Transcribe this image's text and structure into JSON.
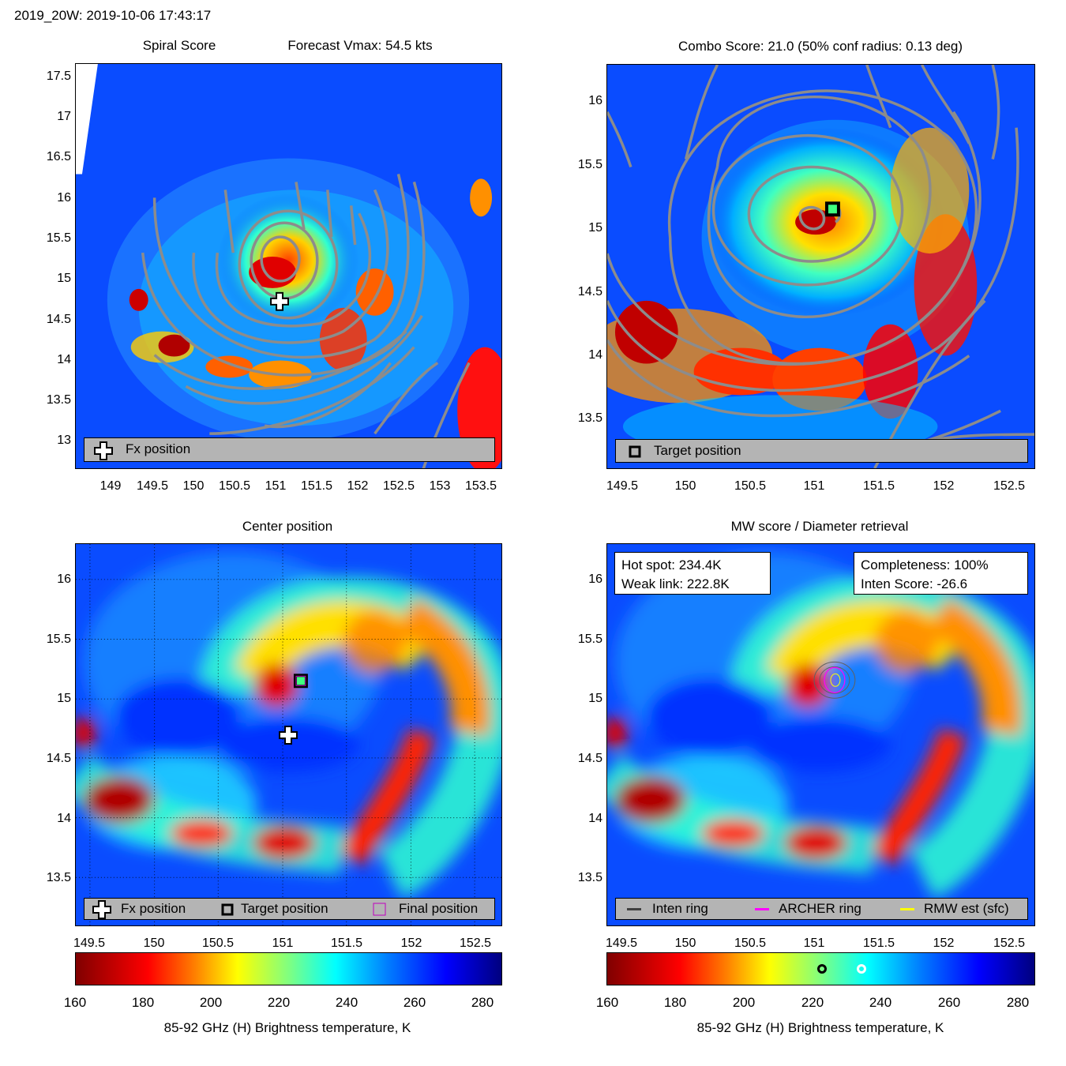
{
  "header": {
    "storm_time": "2019_20W: 2019-10-06 17:43:17"
  },
  "panels": {
    "spiral": {
      "title_left": "Spiral Score",
      "title_right": "Forecast Vmax: 54.5 kts",
      "legend": {
        "fx_label": "Fx position"
      },
      "yticks": [
        "17.5",
        "17",
        "16.5",
        "16",
        "15.5",
        "15",
        "14.5",
        "14",
        "13.5",
        "13"
      ],
      "xticks": [
        "149",
        "149.5",
        "150",
        "150.5",
        "151",
        "151.5",
        "152",
        "152.5",
        "153",
        "153.5"
      ]
    },
    "combo": {
      "title": "Combo Score: 21.0  (50% conf radius: 0.13 deg)",
      "legend": {
        "target_label": "Target position"
      },
      "yticks": [
        "16",
        "15.5",
        "15",
        "14.5",
        "14",
        "13.5"
      ],
      "xticks": [
        "149.5",
        "150",
        "150.5",
        "151",
        "151.5",
        "152",
        "152.5"
      ]
    },
    "center": {
      "title": "Center position",
      "legend": {
        "fx_label": "Fx position",
        "target_label": "Target position",
        "final_label": "Final position"
      },
      "yticks": [
        "16",
        "15.5",
        "15",
        "14.5",
        "14",
        "13.5"
      ],
      "xticks": [
        "149.5",
        "150",
        "150.5",
        "151",
        "151.5",
        "152",
        "152.5"
      ],
      "colorbar": {
        "ticks": [
          "160",
          "180",
          "200",
          "220",
          "240",
          "260",
          "280"
        ],
        "label": "85-92 GHz (H) Brightness temperature, K"
      }
    },
    "mw": {
      "title": "MW score / Diameter retrieval",
      "info_left": {
        "hot_spot": "Hot spot: 234.4K",
        "weak_link": "Weak link: 222.8K"
      },
      "info_right": {
        "completeness": "Completeness: 100%",
        "inten_score": "Inten Score: -26.6"
      },
      "legend": {
        "inten_ring": "Inten ring",
        "archer_ring": "ARCHER ring",
        "rmw_est": "RMW est (sfc)"
      },
      "yticks": [
        "16",
        "15.5",
        "15",
        "14.5",
        "14",
        "13.5"
      ],
      "xticks": [
        "149.5",
        "150",
        "150.5",
        "151",
        "151.5",
        "152",
        "152.5"
      ],
      "colorbar": {
        "ticks": [
          "160",
          "180",
          "200",
          "220",
          "240",
          "260",
          "280"
        ],
        "label": "85-92 GHz (H) Brightness temperature, K",
        "markers": [
          {
            "color": "#000000",
            "value": 222.8
          },
          {
            "color": "#ffffff",
            "value": 234.4
          }
        ]
      }
    }
  },
  "chart_data": [
    {
      "type": "heatmap",
      "title": "Spiral Score  Forecast Vmax: 54.5 kts",
      "xlim": [
        148.6,
        153.8
      ],
      "ylim": [
        12.6,
        17.7
      ],
      "markers": [
        {
          "label": "Fx position",
          "lon": 151.05,
          "lat": 14.7
        }
      ]
    },
    {
      "type": "heatmap",
      "title": "Combo Score: 21.0  (50% conf radius: 0.13 deg)",
      "xlim": [
        149.4,
        152.7
      ],
      "ylim": [
        13.2,
        16.5
      ],
      "markers": [
        {
          "label": "Target position",
          "lon": 151.15,
          "lat": 15.15
        }
      ]
    },
    {
      "type": "heatmap",
      "title": "Center position",
      "xlim": [
        149.4,
        152.7
      ],
      "ylim": [
        13.1,
        16.3
      ],
      "colorbar_range": [
        160,
        285
      ],
      "markers": [
        {
          "label": "Fx position",
          "lon": 151.05,
          "lat": 14.7
        },
        {
          "label": "Target position",
          "lon": 151.15,
          "lat": 15.15
        },
        {
          "label": "Final position",
          "lon": 151.15,
          "lat": 15.15
        }
      ]
    },
    {
      "type": "heatmap",
      "title": "MW score / Diameter retrieval",
      "xlim": [
        149.4,
        152.7
      ],
      "ylim": [
        13.1,
        16.3
      ],
      "colorbar_range": [
        160,
        285
      ],
      "hot_spot_K": 234.4,
      "weak_link_K": 222.8,
      "completeness_pct": 100,
      "inten_score": -26.6
    }
  ]
}
